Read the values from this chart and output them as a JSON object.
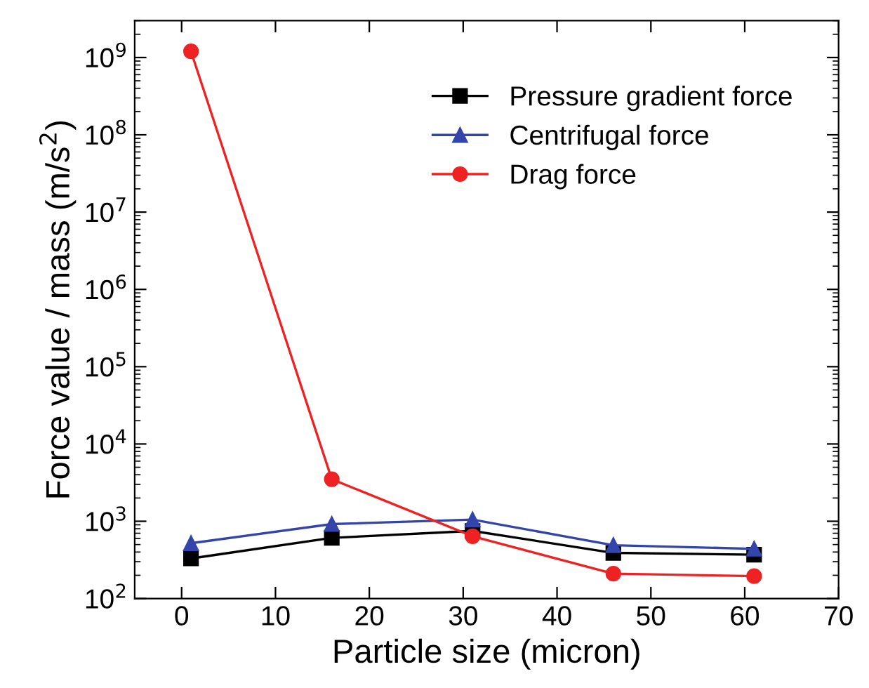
{
  "chart_data": {
    "type": "line",
    "xlabel": "Particle size (micron)",
    "ylabel": "Force value / mass (m/s$^{2}$)",
    "x": [
      1,
      16,
      31,
      46,
      61
    ],
    "series": [
      {
        "name": "Pressure gradient force",
        "color": "#000000",
        "marker": "square",
        "values": [
          330,
          610,
          750,
          390,
          370
        ]
      },
      {
        "name": "Centrifugal force",
        "color": "#3344aa",
        "marker": "triangle",
        "values": [
          520,
          920,
          1050,
          490,
          440
        ]
      },
      {
        "name": "Drag force",
        "color": "#ee2222",
        "marker": "circle",
        "values": [
          1200000000,
          3500,
          640,
          210,
          195
        ]
      }
    ],
    "log": "y",
    "xlim": [
      -5,
      70
    ],
    "xticks": [
      0,
      10,
      20,
      30,
      40,
      50,
      60,
      70
    ],
    "ylim": [
      100,
      3000000000
    ],
    "yticks": [
      {
        "value": 100,
        "label": "10$^{2}$"
      },
      {
        "value": 1000,
        "label": "10$^{3}$"
      },
      {
        "value": 10000,
        "label": "10$^{4}$"
      },
      {
        "value": 100000,
        "label": "10$^{5}$"
      },
      {
        "value": 1000000,
        "label": "10$^{6}$"
      },
      {
        "value": 10000000,
        "label": "10$^{7}$"
      },
      {
        "value": 100000000,
        "label": "10$^{8}$"
      },
      {
        "value": 1000000000,
        "label": "10$^{9}$"
      }
    ],
    "legend": "top right",
    "grid": false,
    "line_style": "solid"
  }
}
